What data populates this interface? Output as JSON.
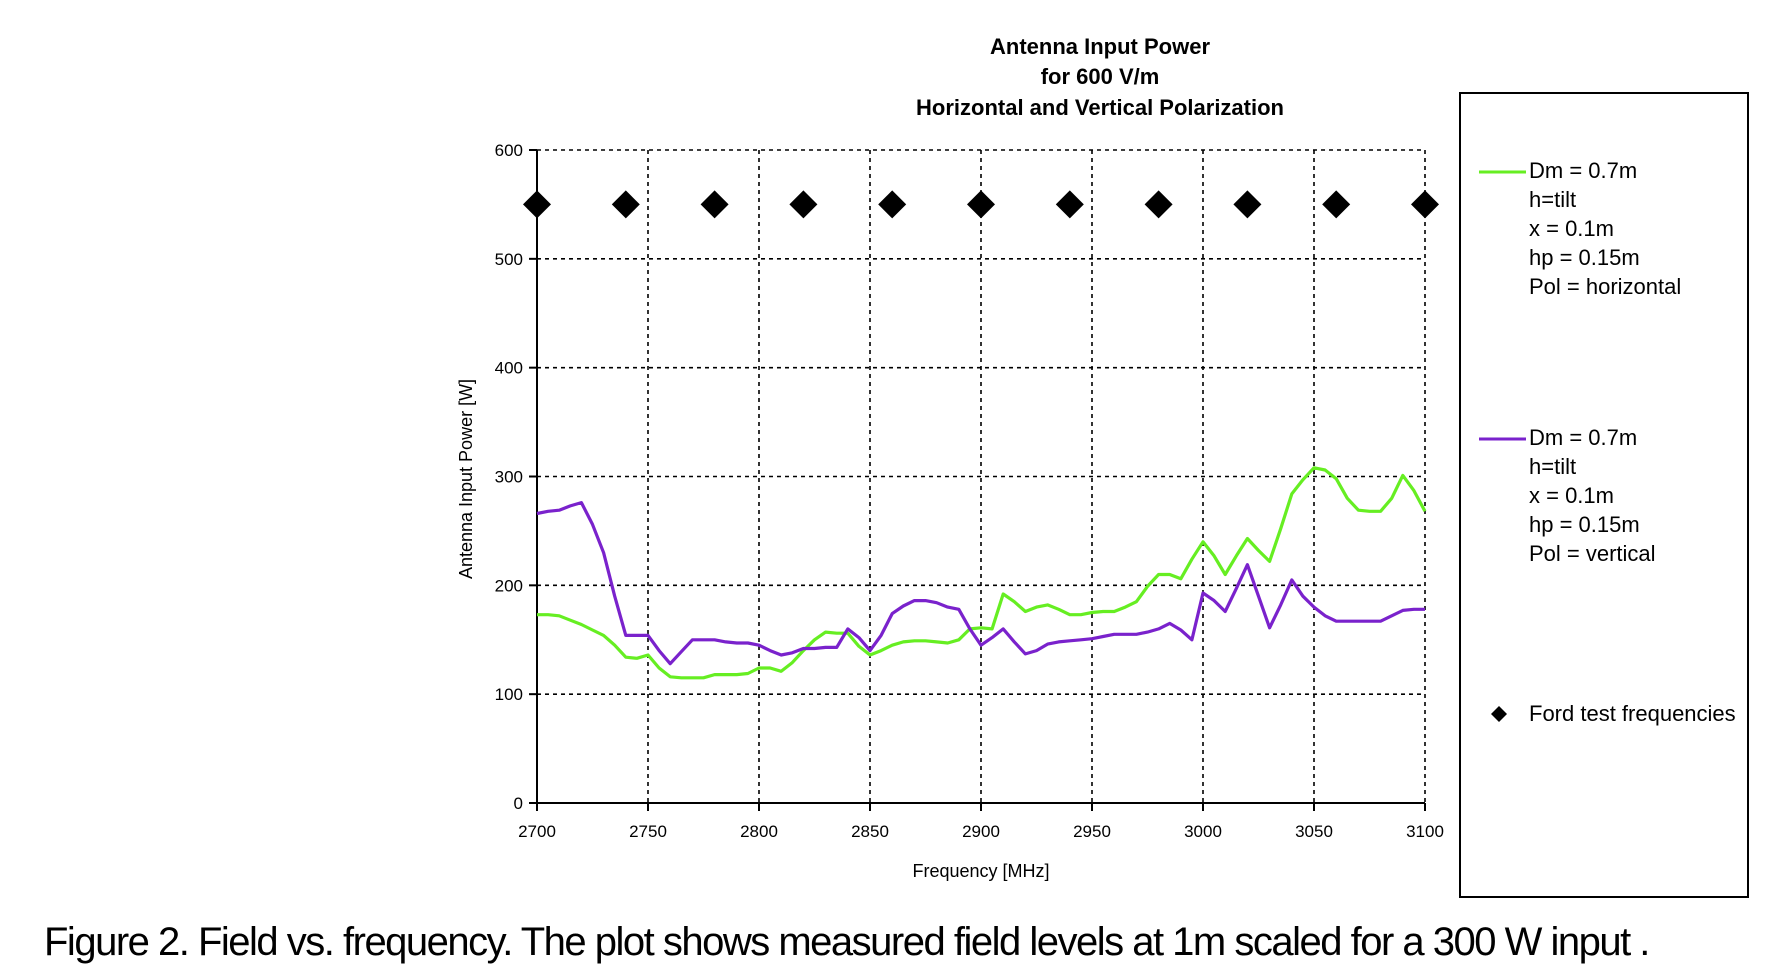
{
  "chart_data": {
    "type": "line",
    "title_lines": [
      "Antenna Input Power",
      "for 600 V/m",
      "Horizontal and Vertical Polarization"
    ],
    "xlabel": "Frequency [MHz]",
    "ylabel": "Antenna Input Power [W]",
    "xlim": [
      2700,
      3100
    ],
    "ylim": [
      0,
      600
    ],
    "xticks": [
      2700,
      2750,
      2800,
      2850,
      2900,
      2950,
      3000,
      3050,
      3100
    ],
    "yticks": [
      0,
      100,
      200,
      300,
      400,
      500,
      600
    ],
    "grid": true,
    "legend_position": "right",
    "series": [
      {
        "name_lines": [
          "Dm =  0.7m",
          "h=tilt",
          "x = 0.1m",
          "hp = 0.15m",
          "Pol =  horizontal"
        ],
        "color": "#66ee22",
        "x": [
          2700,
          2705,
          2710,
          2715,
          2720,
          2725,
          2730,
          2735,
          2740,
          2745,
          2750,
          2755,
          2760,
          2765,
          2770,
          2775,
          2780,
          2785,
          2790,
          2795,
          2800,
          2805,
          2810,
          2815,
          2820,
          2825,
          2830,
          2835,
          2840,
          2845,
          2850,
          2855,
          2860,
          2865,
          2870,
          2875,
          2880,
          2885,
          2890,
          2895,
          2900,
          2905,
          2910,
          2915,
          2920,
          2925,
          2930,
          2935,
          2940,
          2945,
          2950,
          2955,
          2960,
          2965,
          2970,
          2975,
          2980,
          2985,
          2990,
          2995,
          3000,
          3005,
          3010,
          3015,
          3020,
          3025,
          3030,
          3035,
          3040,
          3045,
          3050,
          3055,
          3060,
          3065,
          3070,
          3075,
          3080,
          3085,
          3090,
          3095,
          3100
        ],
        "y": [
          173,
          173,
          172,
          168,
          164,
          159,
          154,
          145,
          134,
          133,
          136,
          124,
          116,
          115,
          115,
          115,
          118,
          118,
          118,
          119,
          124,
          124,
          121,
          129,
          140,
          150,
          157,
          156,
          156,
          144,
          136,
          140,
          145,
          148,
          149,
          149,
          148,
          147,
          150,
          160,
          161,
          160,
          192,
          185,
          176,
          180,
          182,
          178,
          173,
          173,
          175,
          176,
          176,
          180,
          185,
          199,
          210,
          210,
          206,
          224,
          240,
          227,
          210,
          227,
          243,
          232,
          222,
          252,
          284,
          297,
          308,
          306,
          298,
          280,
          269,
          268,
          268,
          280,
          301,
          287,
          268
        ]
      },
      {
        "name_lines": [
          "Dm =  0.7m",
          "h=tilt",
          "x = 0.1m",
          "hp = 0.15m",
          "Pol =  vertical"
        ],
        "color": "#7a22cc",
        "x": [
          2700,
          2705,
          2710,
          2715,
          2720,
          2725,
          2730,
          2735,
          2740,
          2745,
          2750,
          2755,
          2760,
          2765,
          2770,
          2775,
          2780,
          2785,
          2790,
          2795,
          2800,
          2805,
          2810,
          2815,
          2820,
          2825,
          2830,
          2835,
          2840,
          2845,
          2850,
          2855,
          2860,
          2865,
          2870,
          2875,
          2880,
          2885,
          2890,
          2895,
          2900,
          2905,
          2910,
          2915,
          2920,
          2925,
          2930,
          2935,
          2940,
          2945,
          2950,
          2955,
          2960,
          2965,
          2970,
          2975,
          2980,
          2985,
          2990,
          2995,
          3000,
          3005,
          3010,
          3015,
          3020,
          3025,
          3030,
          3035,
          3040,
          3045,
          3050,
          3055,
          3060,
          3065,
          3070,
          3075,
          3080,
          3085,
          3090,
          3095,
          3100
        ],
        "y": [
          266,
          268,
          269,
          273,
          276,
          256,
          230,
          190,
          154,
          154,
          154,
          140,
          128,
          139,
          150,
          150,
          150,
          148,
          147,
          147,
          145,
          140,
          136,
          138,
          142,
          142,
          143,
          143,
          160,
          152,
          140,
          154,
          174,
          181,
          186,
          186,
          184,
          180,
          178,
          160,
          145,
          152,
          160,
          148,
          137,
          140,
          146,
          148,
          149,
          150,
          151,
          153,
          155,
          155,
          155,
          157,
          160,
          165,
          159,
          150,
          193,
          186,
          176,
          197,
          219,
          190,
          161,
          182,
          205,
          190,
          180,
          172,
          167,
          167,
          167,
          167,
          167,
          172,
          177,
          178,
          178
        ]
      },
      {
        "name": "Ford test frequencies",
        "marker": "diamond",
        "color": "#000000",
        "x": [
          2700,
          2740,
          2780,
          2820,
          2860,
          2900,
          2940,
          2980,
          3020,
          3060,
          3100
        ],
        "y": [
          550,
          550,
          550,
          550,
          550,
          550,
          550,
          550,
          550,
          550,
          550
        ]
      }
    ]
  },
  "caption": "Figure 2.  Field vs. frequency.  The plot shows measured field levels at 1m scaled for a 300 W input ."
}
